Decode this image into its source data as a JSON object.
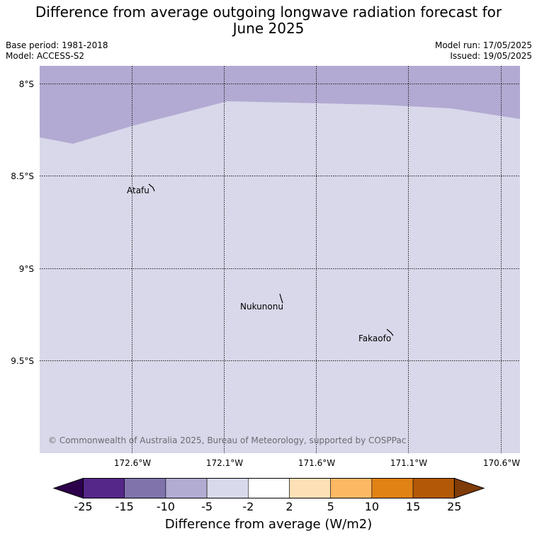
{
  "header": {
    "title_line1": "Difference from average outgoing longwave radiation forecast for",
    "title_line2": "June 2025",
    "base_period": "Base period: 1981-2018",
    "model": "Model: ACCESS-S2",
    "model_run": "Model run: 17/05/2025",
    "issued": "Issued: 19/05/2025"
  },
  "map": {
    "lat_labels": [
      "8°S",
      "8.5°S",
      "9°S",
      "9.5°S"
    ],
    "lon_labels": [
      "172.6°W",
      "172.1°W",
      "171.6°W",
      "171.1°W",
      "170.6°W"
    ],
    "places": [
      "Atafu",
      "Nukunonu",
      "Fakaofo"
    ],
    "copyright": "© Commonwealth of Australia 2025, Bureau of Meteorology, supported by COSPPac",
    "fill_colors": {
      "band_-10_-5": "#b2aad2",
      "band_-5_-2": "#d8d8ea"
    }
  },
  "colorbar": {
    "ticks": [
      "-25",
      "-15",
      "-10",
      "-5",
      "-2",
      "2",
      "5",
      "10",
      "15",
      "25"
    ],
    "colors": [
      "#2d004b",
      "#542788",
      "#8073ac",
      "#b2abd2",
      "#d8daeb",
      "#ffffff",
      "#fee0b6",
      "#fdb863",
      "#e08214",
      "#b35806",
      "#7f3b08"
    ],
    "label": "Difference from average (W/m2)"
  }
}
